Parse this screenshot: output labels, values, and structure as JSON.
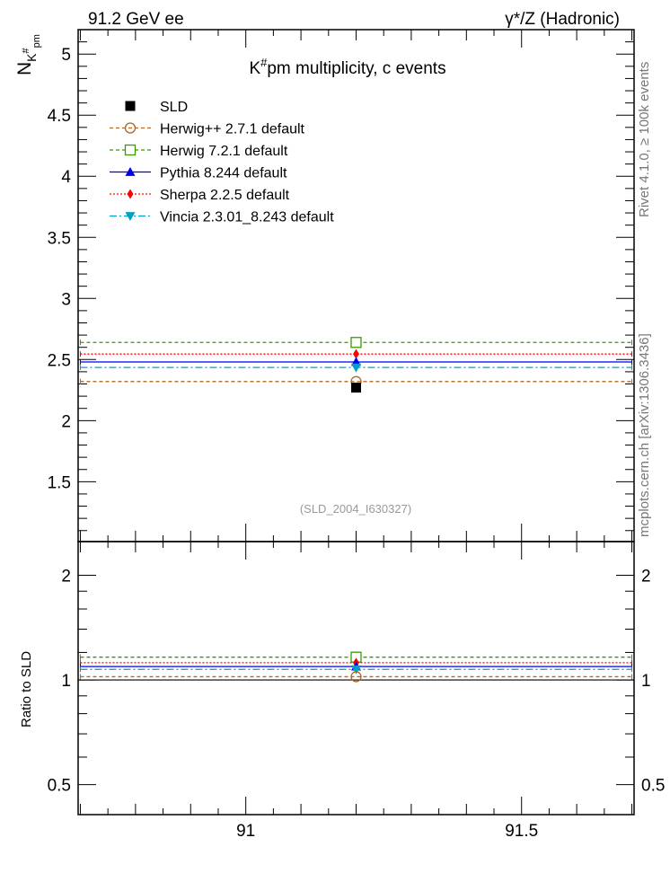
{
  "header": {
    "left": "91.2 GeV ee",
    "right": "γ*/Z (Hadronic)"
  },
  "side_labels": {
    "rivet": "Rivet 4.1.0, ≥ 100k events",
    "mcplots": "mcplots.cern.ch [arXiv:1306.3436]"
  },
  "chart_data": [
    {
      "type": "line",
      "title": "K#pm multiplicity, c events",
      "title_main": "K",
      "title_sup": "#",
      "title_rest": "pm multiplicity, c events",
      "ylabel": "N_K#pm",
      "ylabel_main": "N",
      "ylabel_sub": "K",
      "ylabel_subsup": "#",
      "ylabel_subsub": "pm",
      "xlabel": "",
      "xlim": [
        90.696,
        91.704
      ],
      "ylim": [
        1.01,
        5.2
      ],
      "yticks": [
        "1.5",
        "2",
        "2.5",
        "3",
        "3.5",
        "4",
        "4.5",
        "5"
      ],
      "xticks": [
        "91",
        "91.5"
      ],
      "bin": [
        90.7,
        91.7
      ],
      "x_point": 91.2,
      "annotation": "(SLD_2004_I630327)",
      "legend_position": "top-left",
      "series": [
        {
          "name": "SLD",
          "value": 2.27,
          "color": "#000000",
          "marker": "square-filled",
          "line": "none"
        },
        {
          "name": "Herwig++ 2.7.1 default",
          "value": 2.32,
          "color": "#b5651d",
          "marker": "circle-open",
          "line": "dashed"
        },
        {
          "name": "Herwig 7.2.1 default",
          "value": 2.64,
          "color": "#3a9a00",
          "marker": "square-open",
          "line": "dashed"
        },
        {
          "name": "Pythia 8.244 default",
          "value": 2.48,
          "color": "#0000ee",
          "marker": "triangle-up",
          "line": "solid"
        },
        {
          "name": "Sherpa 2.2.5 default",
          "value": 2.545,
          "color": "#ff0000",
          "marker": "diamond",
          "line": "dotted"
        },
        {
          "name": "Vincia 2.3.01_8.243 default",
          "value": 2.435,
          "color": "#00a0c0",
          "marker": "triangle-down",
          "line": "dashdot"
        }
      ]
    },
    {
      "type": "line",
      "ylabel": "Ratio to SLD",
      "yscale": "log",
      "ylim": [
        0.41,
        2.5
      ],
      "yticks": [
        "0.5",
        "1",
        "2"
      ],
      "xticks": [
        "91",
        "91.5"
      ],
      "series": [
        {
          "name": "Herwig++ 2.7.1 default",
          "value": 1.022
        },
        {
          "name": "Herwig 7.2.1 default",
          "value": 1.163
        },
        {
          "name": "Pythia 8.244 default",
          "value": 1.093
        },
        {
          "name": "Sherpa 2.2.5 default",
          "value": 1.121
        },
        {
          "name": "Vincia 2.3.01_8.243 default",
          "value": 1.073
        }
      ]
    }
  ]
}
